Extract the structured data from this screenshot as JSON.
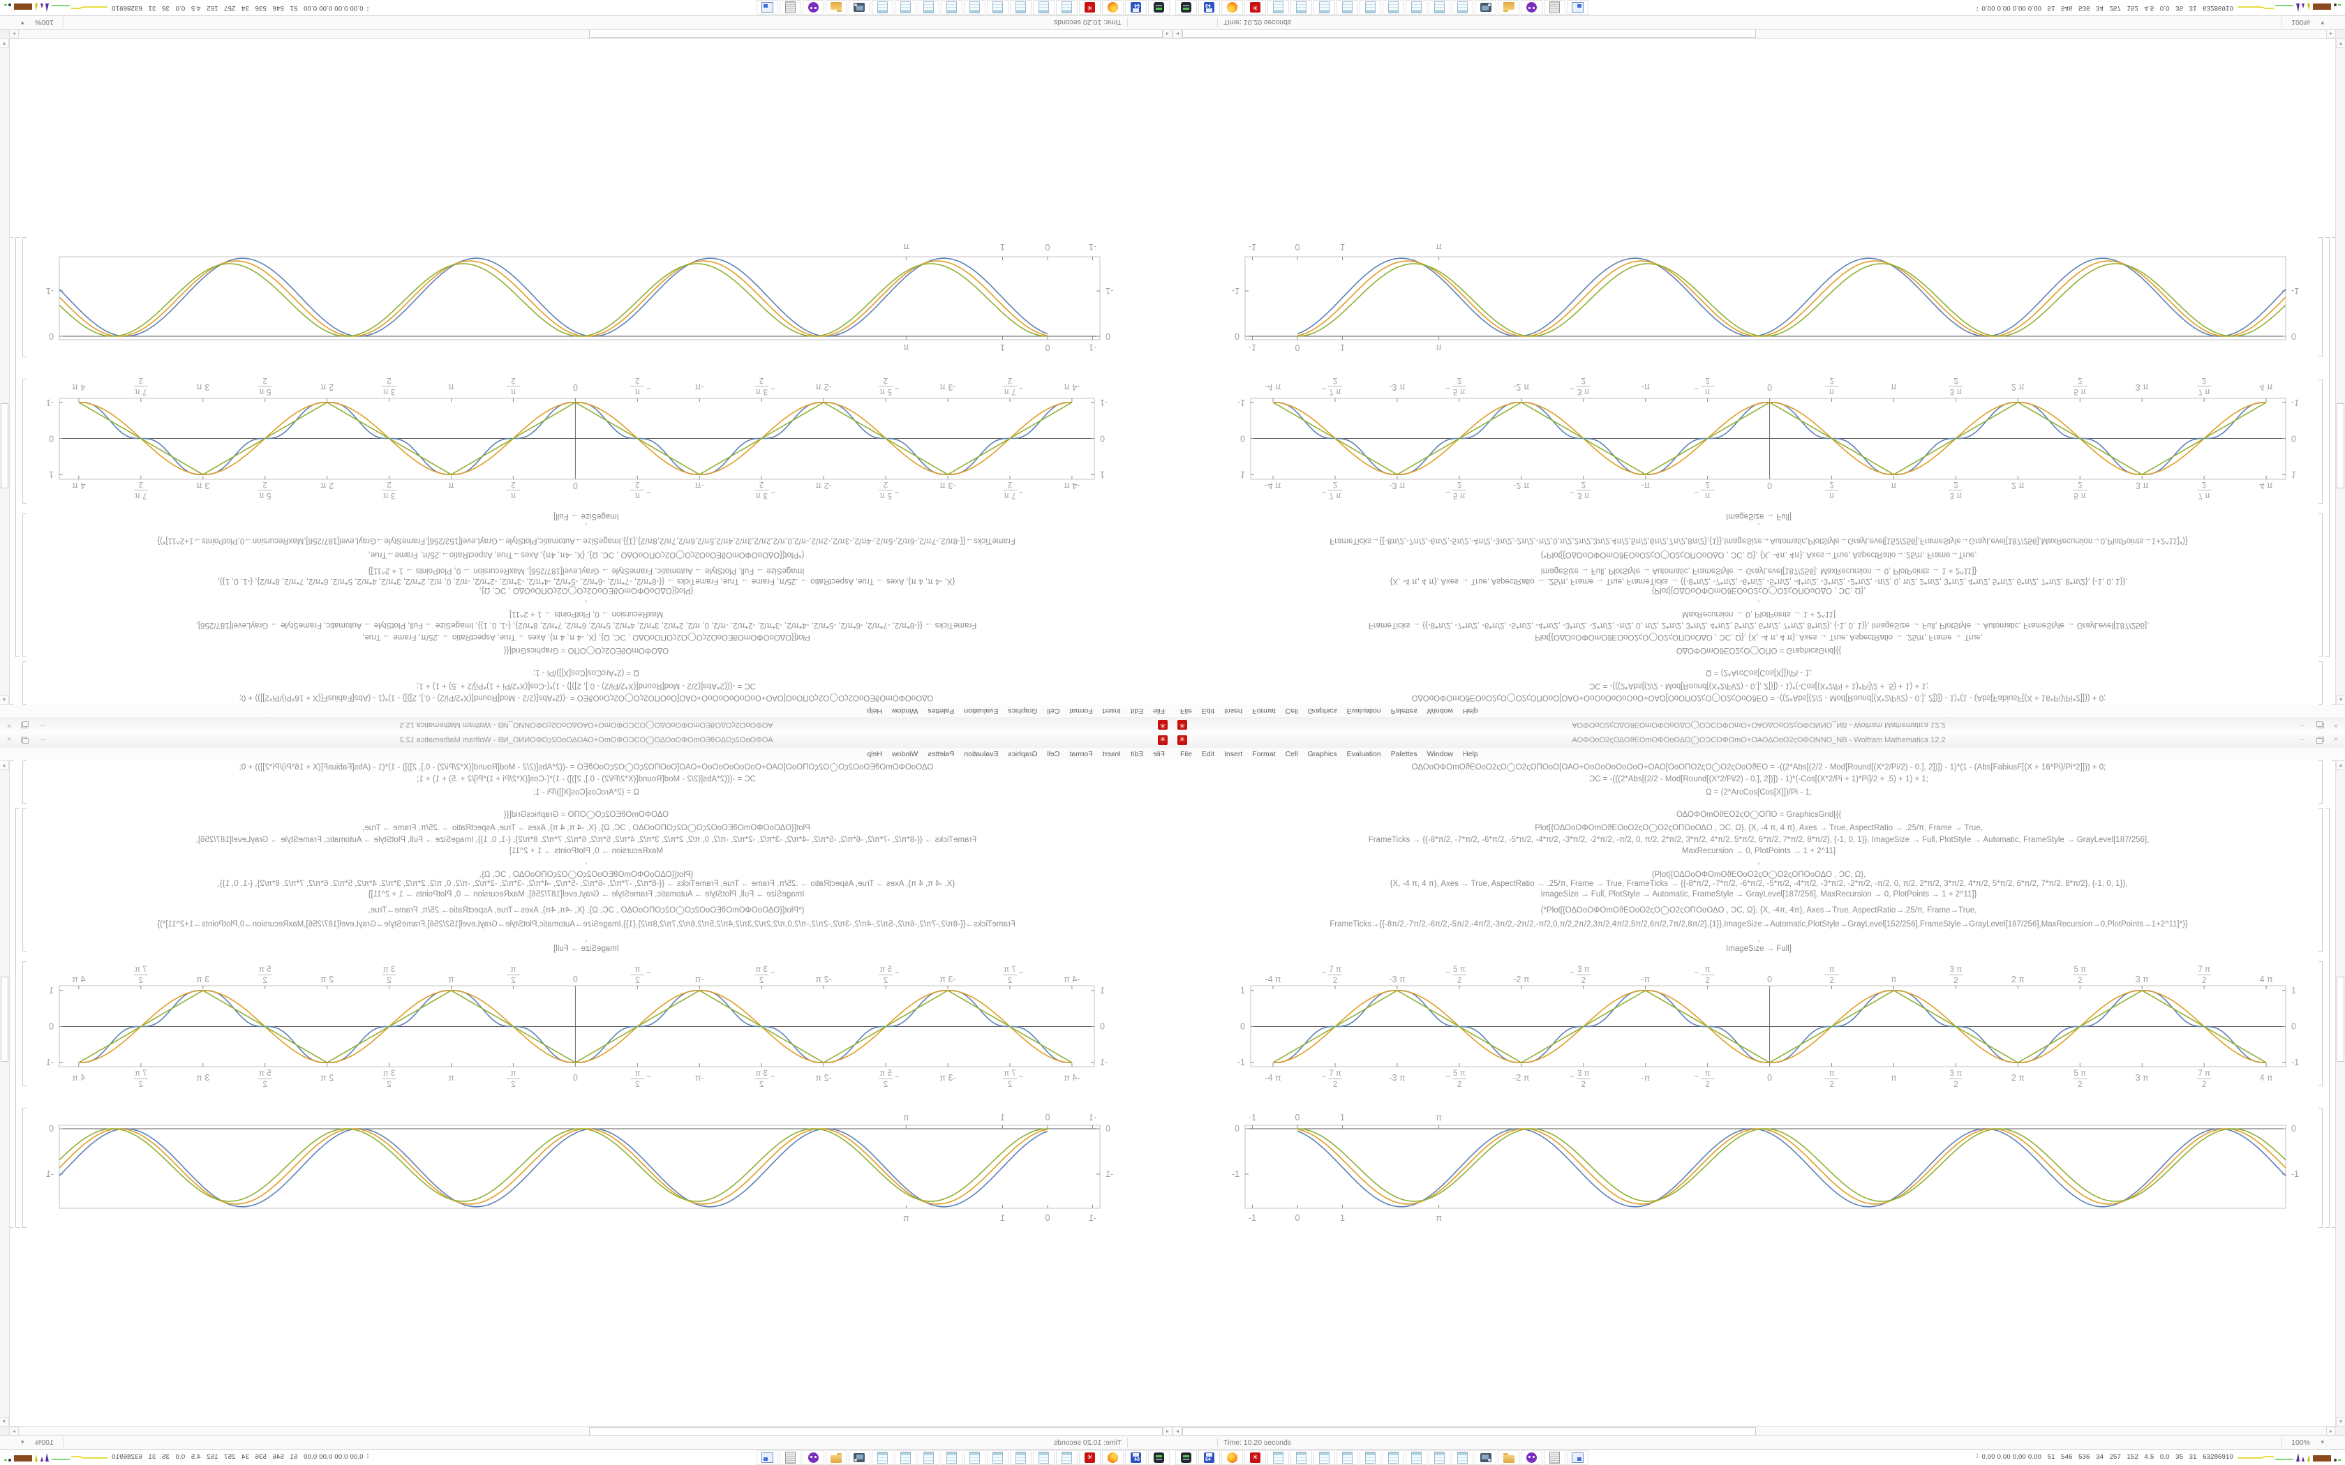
{
  "window": {
    "title": "ΑΟΦΟοΟ2ςΟΔΟϑΕΟmΟΦΟοΟΔΟ◯ΟϽϹΟΦΟmΟ+ΟΑΟΔΟοΟ2ςΟΦΟΝΝΟ_NB - Wolfram Mathematica 12.2",
    "menu_items": [
      "File",
      "Edit",
      "Insert",
      "Format",
      "Cell",
      "Graphics",
      "Evaluation",
      "Palettes",
      "Window",
      "Help"
    ],
    "controls": {
      "minimize": "–",
      "close": "×"
    },
    "status_time": "Time: 10.20 seconds",
    "zoom_level": "100%",
    "zoom_caret": "▾"
  },
  "notebook": {
    "code_lines": [
      "ΟΔΟοΟΦΟmΟϑΕΟοΟ2ςΟ◯Ο2ςΟΠΟοΟ[ΟΑΟ+ΟοΟοΟοΟοΟοΟ+ΟΑΟ[ΟοΟΠΟ2ςΟ◯Ο2ςΟοΟϑΕΟ  = -((2*Abs[(2/2 - Mod[Round[(X*2/Pi/2) - 0.], 2])]) - 1)*(1 - (Abs[FabiusF[(X + 16*Pi)/Pi*2]])) + 0;",
      "ϽϹ = -(((2*Abs[(2/2 - Mod[Round[(X*2/Pi/2) - 0.], 2])]) - 1)*(-Cos[(X*2/Pi + 1)*Pi]/2 + .5) + 1) + 1;",
      "Ω = (2*ArcCos[Cos[X]])/Pi - 1;",
      "ΟΔΟΦΟmΟϑΕΟ2ςΟ◯ΟΠΟ = GraphicsGrid[{{",
      "Plot[{ΟΔΟοΟΦΟmΟϑΕΟοΟ2ςΟ◯Ο2ςΟΠΟοΟΔΟ , ϽϹ, Ω}, {X, -4 π, 4 π}, Axes → True, AspectRatio → .25/π, Frame → True,",
      "FrameTicks → {{-8*π/2, -7*π/2, -6*π/2, -5*π/2, -4*π/2, -3*π/2, -2*π/2, -π/2, 0, π/2, 2*π/2, 3*π/2, 4*π/2, 5*π/2, 6*π/2, 7*π/2, 8*π/2}, {-1, 0, 1}}, ImageSize → Full, PlotStyle → Automatic, FrameStyle → GrayLevel[187/256],",
      "MaxRecursion → 0, PlotPoints → 1 + 2^11]",
      ",",
      "{Plot[{ΟΔΟοΟΦΟmΟϑΕΟοΟ2ςΟ◯Ο2ςΟΠΟοΟΔΟ , ϽϹ, Ω},",
      "{X, -4 π, 4 π}, Axes → True, AspectRatio → .25/π, Frame → True, FrameTicks → {{-8*π/2, -7*π/2, -6*π/2, -5*π/2, -4*π/2, -3*π/2, -2*π/2, -π/2, 0, π/2, 2*π/2, 3*π/2, 4*π/2, 5*π/2, 6*π/2, 7*π/2, 8*π/2}, {-1, 0, 1}},",
      "ImageSize → Full, PlotStyle → Automatic, FrameStyle → GrayLevel[187/256], MaxRecursion → 0, PlotPoints → 1 + 2^11]}",
      "(*Plot[{ΟΔΟοΟΦΟmΟϑΕΟοΟ2ςΟ◯Ο2ςΟΠΟοΟΔΟ , ϽϹ, Ω}, {X, -4π, 4π}, Axes→True, AspectRatio→.25/π, Frame→True,",
      "FrameTicks→{{-8π/2,-7π/2,-6π/2,-5π/2,-4π/2,-3π/2,-2π/2,-π/2,0,π/2,2π/2,3π/2,4π/2,5π/2,6π/2,7π/2,8π/2},{1}},ImageSize→Automatic,PlotStyle→GrayLevel[152/256],FrameStyle→GrayLevel[187/256],MaxRecursion→0,PlotPoints→1+2^11]*)}",
      ",",
      "ImageSize → Full]"
    ]
  },
  "chart_data": [
    {
      "id": "plot-a",
      "type": "line",
      "title": "",
      "xlabel": "",
      "ylabel": "",
      "x_domain": [
        -12.566,
        12.566
      ],
      "x_frame": [
        -13.85,
        13.85
      ],
      "ylim": [
        -1.16,
        1.16
      ],
      "frame": true,
      "axes": true,
      "grid": false,
      "legend": "none",
      "xticks": [
        {
          "v": -8,
          "label": "-4 π"
        },
        {
          "v": -7,
          "num": "7 π",
          "den": "2",
          "neg": true
        },
        {
          "v": -6,
          "label": "-3 π"
        },
        {
          "v": -5,
          "num": "5 π",
          "den": "2",
          "neg": true
        },
        {
          "v": -4,
          "label": "-2 π"
        },
        {
          "v": -3,
          "num": "3 π",
          "den": "2",
          "neg": true
        },
        {
          "v": -2,
          "label": "-π"
        },
        {
          "v": -1,
          "num": "π",
          "den": "2",
          "neg": true
        },
        {
          "v": 0,
          "label": "0"
        },
        {
          "v": 1,
          "num": "π",
          "den": "2",
          "neg": false
        },
        {
          "v": 2,
          "label": "π"
        },
        {
          "v": 3,
          "num": "3 π",
          "den": "2",
          "neg": false
        },
        {
          "v": 4,
          "label": "2 π"
        },
        {
          "v": 5,
          "num": "5 π",
          "den": "2",
          "neg": false
        },
        {
          "v": 6,
          "label": "3 π"
        },
        {
          "v": 7,
          "num": "7 π",
          "den": "2",
          "neg": false
        },
        {
          "v": 8,
          "label": "4 π"
        }
      ],
      "xtick_unit": "π/2",
      "yticks": [
        {
          "v": 1,
          "label": "1"
        },
        {
          "v": 0,
          "label": "0"
        },
        {
          "v": -1,
          "label": "-1"
        }
      ],
      "series": [
        {
          "name": "fabius-smooth-staircase",
          "kind": "staircase",
          "color": "#5e81b5",
          "amplitude": 1,
          "period": 6.2832
        },
        {
          "name": "negative-cosine",
          "kind": "negcos",
          "color": "#e19c24",
          "amplitude": 1,
          "period": 6.2832
        },
        {
          "name": "triangle-wave",
          "kind": "triangle",
          "color": "#8fb032",
          "amplitude": 1,
          "period": 6.2832
        }
      ]
    },
    {
      "id": "plot-b",
      "type": "line",
      "title": "",
      "xlabel": "",
      "ylabel": "",
      "x_domain": [
        0,
        21.95
      ],
      "x_frame": [
        -1.16,
        21.95
      ],
      "ylim": [
        -1.754,
        0.077
      ],
      "frame": true,
      "axes": true,
      "grid": false,
      "legend": "none",
      "xticks": [
        {
          "v": -1,
          "label": "-1"
        },
        {
          "v": 0,
          "label": "0"
        },
        {
          "v": 1,
          "label": "1"
        },
        {
          "v": 3.14159,
          "label": "π"
        }
      ],
      "yticks": [
        {
          "v": 0,
          "label": "0"
        },
        {
          "v": -1,
          "label": "-1"
        }
      ],
      "series": [
        {
          "name": "blue-dip",
          "kind": "dip",
          "color": "#5e81b5",
          "amp": 0.86,
          "omega": 1.21,
          "phase": -0.35
        },
        {
          "name": "orange-dip",
          "kind": "dip",
          "color": "#e19c24",
          "amp": 0.83,
          "omega": 1.21,
          "phase": -0.18
        },
        {
          "name": "green-dip",
          "kind": "dip",
          "color": "#8fb032",
          "amp": 0.8,
          "omega": 1.21,
          "phase": 0.0
        }
      ]
    }
  ],
  "taskbar": {
    "items": [
      "disk-utility",
      "floppy-64",
      "firefox",
      "mathematica-kernel",
      "notepad",
      "notepad",
      "notepad",
      "notepad",
      "notepad",
      "notepad",
      "notepad",
      "notepad",
      "notepad",
      "screenshot-tool",
      "folder",
      "chat-app",
      "scroll-document",
      "window-app"
    ],
    "floppy_label": "64",
    "monitor_text": "0.00 0.00 0.00 0.00   51   546   536   34   257   152   4.5   0.0   35   31   63286910"
  },
  "colors": {
    "series_blue": "#5e81b5",
    "series_orange": "#e19c24",
    "series_green": "#8fb032",
    "frame_gray": "#c3c3c3",
    "axis_gray": "#5a5a5a",
    "mathematica_red": "#c8100e"
  }
}
